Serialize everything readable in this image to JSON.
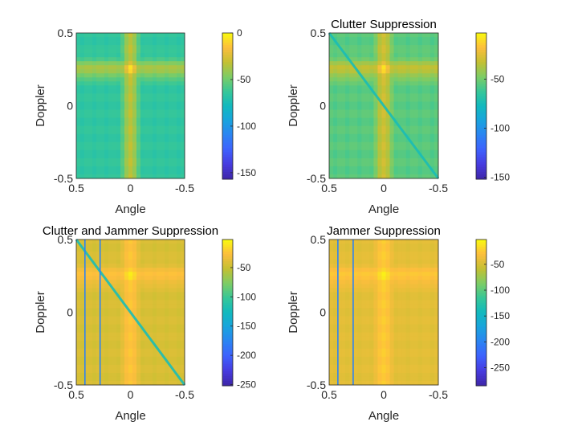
{
  "chart_data": [
    {
      "type": "heatmap",
      "title": "",
      "xlabel": "Angle",
      "ylabel": "Doppler",
      "xlim": [
        0.5,
        -0.5
      ],
      "ylim": [
        -0.5,
        0.5
      ],
      "xticks": [
        "0.5",
        "0",
        "-0.5"
      ],
      "yticks": [
        "-0.5",
        "0",
        "0.5"
      ],
      "colorbar": {
        "range": [
          -157,
          0
        ],
        "ticks": [
          {
            "v": 0,
            "label": "0"
          },
          {
            "v": -50,
            "label": "-50"
          },
          {
            "v": -100,
            "label": "-100"
          },
          {
            "v": -150,
            "label": "-150"
          }
        ]
      },
      "pattern": {
        "background": -62,
        "target_peak": 0,
        "target_angle": 0,
        "target_doppler": 0.25,
        "clutter_ridge": false,
        "jammer_angles": []
      }
    },
    {
      "type": "heatmap",
      "title": "Clutter Suppression",
      "xlabel": "Angle",
      "ylabel": "Doppler",
      "xlim": [
        0.5,
        -0.5
      ],
      "ylim": [
        -0.5,
        0.5
      ],
      "xticks": [
        "0.5",
        "0",
        "-0.5"
      ],
      "yticks": [
        "-0.5",
        "0",
        "0.5"
      ],
      "colorbar": {
        "range": [
          -152,
          -3
        ],
        "ticks": [
          {
            "v": -50,
            "label": "-50"
          },
          {
            "v": -100,
            "label": "-100"
          },
          {
            "v": -150,
            "label": "-150"
          }
        ]
      },
      "pattern": {
        "background": -52,
        "target_peak": -3,
        "target_angle": 0,
        "target_doppler": 0.25,
        "clutter_ridge": true,
        "jammer_angles": []
      }
    },
    {
      "type": "heatmap",
      "title": "Clutter and Jammer Suppression",
      "xlabel": "Angle",
      "ylabel": "Doppler",
      "xlim": [
        0.5,
        -0.5
      ],
      "ylim": [
        -0.5,
        0.5
      ],
      "xticks": [
        "0.5",
        "0",
        "-0.5"
      ],
      "yticks": [
        "-0.5",
        "0",
        "0.5"
      ],
      "colorbar": {
        "range": [
          -252,
          -2
        ],
        "ticks": [
          {
            "v": -50,
            "label": "-50"
          },
          {
            "v": -100,
            "label": "-100"
          },
          {
            "v": -150,
            "label": "-150"
          },
          {
            "v": -200,
            "label": "-200"
          },
          {
            "v": -250,
            "label": "-250"
          }
        ]
      },
      "pattern": {
        "background": -40,
        "target_peak": -2,
        "target_angle": 0,
        "target_doppler": 0.25,
        "clutter_ridge": true,
        "jammer_angles": [
          0.42,
          0.28
        ]
      }
    },
    {
      "type": "heatmap",
      "title": "Jammer Suppression",
      "xlabel": "Angle",
      "ylabel": "Doppler",
      "xlim": [
        0.5,
        -0.5
      ],
      "ylim": [
        -0.5,
        0.5
      ],
      "xticks": [
        "0.5",
        "0",
        "-0.5"
      ],
      "yticks": [
        "-0.5",
        "0",
        "0.5"
      ],
      "colorbar": {
        "range": [
          -285,
          -2
        ],
        "ticks": [
          {
            "v": -50,
            "label": "-50"
          },
          {
            "v": -100,
            "label": "-100"
          },
          {
            "v": -150,
            "label": "-150"
          },
          {
            "v": -200,
            "label": "-200"
          },
          {
            "v": -250,
            "label": "-250"
          }
        ]
      },
      "pattern": {
        "background": -40,
        "target_peak": -2,
        "target_angle": 0,
        "target_doppler": 0.25,
        "clutter_ridge": false,
        "jammer_angles": [
          0.42,
          0.28
        ]
      }
    }
  ]
}
